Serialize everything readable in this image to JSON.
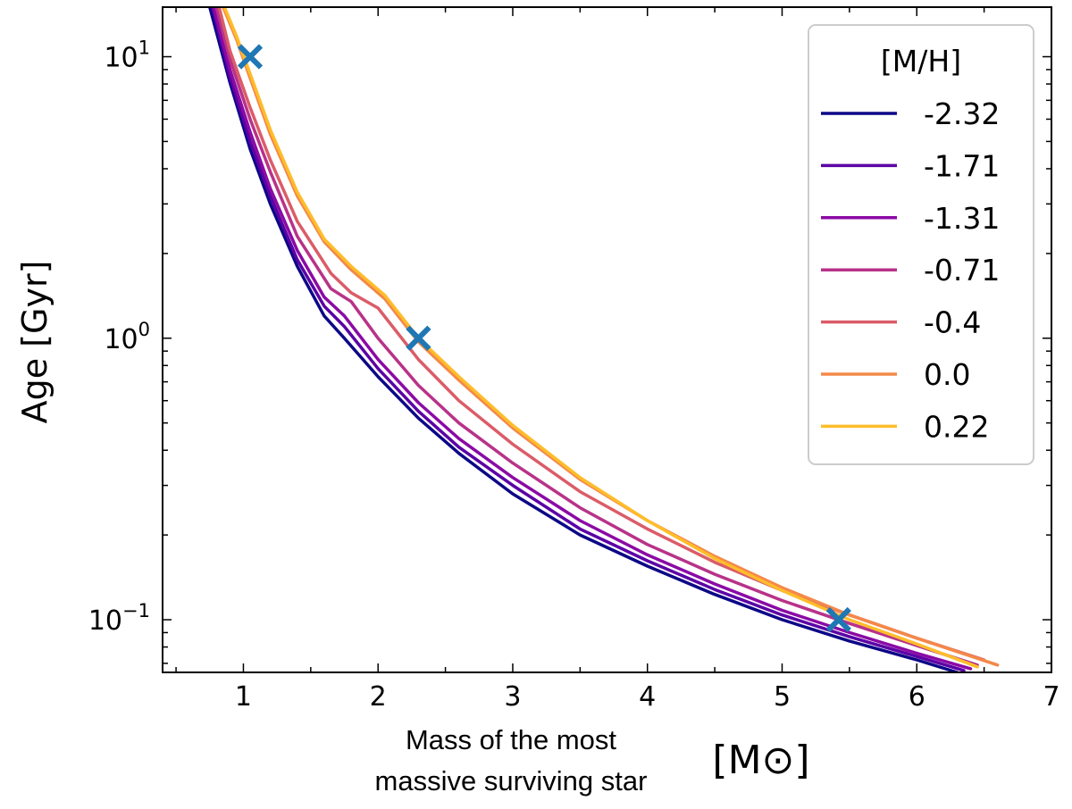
{
  "chart_data": {
    "type": "line",
    "x_scale": "linear",
    "y_scale": "log",
    "xlim": [
      0.4,
      7.0
    ],
    "ylim": [
      0.065,
      15
    ],
    "xlabel_lines": [
      "Mass of the most",
      "massive surviving star"
    ],
    "xlabel_unit": "[M⊙]",
    "ylabel": "Age [Gyr]",
    "x_ticks": [
      1,
      2,
      3,
      4,
      5,
      6,
      7
    ],
    "x_tick_labels": [
      "1",
      "2",
      "3",
      "4",
      "5",
      "6",
      "7"
    ],
    "y_ticks": [
      {
        "value": 0.1,
        "base": "10",
        "exp": "−1"
      },
      {
        "value": 1,
        "base": "10",
        "exp": "0"
      },
      {
        "value": 10,
        "base": "10",
        "exp": "1"
      }
    ],
    "legend": {
      "title": "[M/H]",
      "location": "upper right"
    },
    "series": [
      {
        "name": "-2.32",
        "color": "#0d0887",
        "x": [
          0.75,
          0.9,
          1.05,
          1.2,
          1.4,
          1.6,
          1.75,
          2.0,
          2.3,
          2.6,
          3.0,
          3.5,
          4.0,
          4.5,
          5.0,
          5.5,
          6.0,
          6.3
        ],
        "y": [
          15,
          8.1,
          4.7,
          3.0,
          1.8,
          1.2,
          1.0,
          0.73,
          0.52,
          0.39,
          0.28,
          0.2,
          0.155,
          0.123,
          0.1,
          0.084,
          0.072,
          0.065
        ]
      },
      {
        "name": "-1.71",
        "color": "#5c01a6",
        "x": [
          0.77,
          0.9,
          1.05,
          1.2,
          1.4,
          1.6,
          1.75,
          2.0,
          2.3,
          2.6,
          3.0,
          3.5,
          4.0,
          4.5,
          5.0,
          5.5,
          6.0,
          6.35
        ],
        "y": [
          15,
          8.5,
          5.0,
          3.2,
          1.9,
          1.3,
          1.1,
          0.78,
          0.55,
          0.41,
          0.3,
          0.21,
          0.162,
          0.128,
          0.104,
          0.087,
          0.074,
          0.066
        ]
      },
      {
        "name": "-1.31",
        "color": "#8b0aa5",
        "x": [
          0.78,
          0.9,
          1.05,
          1.2,
          1.4,
          1.6,
          1.75,
          2.0,
          2.3,
          2.6,
          3.0,
          3.5,
          4.0,
          4.5,
          5.0,
          5.5,
          6.0,
          6.4
        ],
        "y": [
          15,
          9.0,
          5.4,
          3.4,
          2.05,
          1.4,
          1.2,
          0.84,
          0.59,
          0.44,
          0.32,
          0.225,
          0.17,
          0.134,
          0.108,
          0.09,
          0.076,
          0.067
        ]
      },
      {
        "name": "-0.71",
        "color": "#b83289",
        "x": [
          0.8,
          0.9,
          1.05,
          1.2,
          1.4,
          1.65,
          1.8,
          2.0,
          2.3,
          2.6,
          3.0,
          3.5,
          4.0,
          4.5,
          5.0,
          5.5,
          6.0,
          6.45
        ],
        "y": [
          15,
          9.8,
          6.0,
          3.9,
          2.3,
          1.5,
          1.35,
          1.0,
          0.68,
          0.5,
          0.36,
          0.25,
          0.185,
          0.145,
          0.117,
          0.097,
          0.081,
          0.069
        ]
      },
      {
        "name": "-0.4",
        "color": "#db5c68",
        "x": [
          0.82,
          0.9,
          1.05,
          1.2,
          1.4,
          1.65,
          1.8,
          2.0,
          2.3,
          2.6,
          3.0,
          3.5,
          4.0,
          4.5,
          5.0,
          5.5,
          6.0,
          6.5
        ],
        "y": [
          15,
          10.5,
          6.6,
          4.3,
          2.6,
          1.7,
          1.45,
          1.28,
          0.84,
          0.6,
          0.42,
          0.285,
          0.21,
          0.16,
          0.127,
          0.104,
          0.086,
          0.072
        ]
      },
      {
        "name": "0.0",
        "color": "#f48849",
        "x": [
          0.85,
          0.95,
          1.05,
          1.2,
          1.4,
          1.6,
          1.8,
          2.05,
          2.3,
          2.6,
          3.0,
          3.5,
          4.0,
          4.5,
          5.0,
          5.5,
          6.0,
          6.6
        ],
        "y": [
          15,
          11.5,
          8.4,
          5.3,
          3.2,
          2.2,
          1.75,
          1.38,
          0.97,
          0.71,
          0.48,
          0.315,
          0.225,
          0.168,
          0.13,
          0.104,
          0.086,
          0.069
        ]
      },
      {
        "name": "0.22",
        "color": "#febd2a",
        "x": [
          0.86,
          0.95,
          1.05,
          1.2,
          1.4,
          1.6,
          1.8,
          2.05,
          2.3,
          2.6,
          3.0,
          3.5,
          4.0,
          4.5,
          5.0,
          5.5,
          6.0,
          6.45
        ],
        "y": [
          15,
          11.8,
          8.7,
          5.5,
          3.3,
          2.25,
          1.8,
          1.42,
          1.0,
          0.73,
          0.49,
          0.32,
          0.225,
          0.165,
          0.127,
          0.1,
          0.082,
          0.068
        ]
      }
    ],
    "markers": {
      "symbol": "x",
      "color": "#1f77b4",
      "points": [
        {
          "x": 1.05,
          "y": 10
        },
        {
          "x": 2.3,
          "y": 1
        },
        {
          "x": 5.42,
          "y": 0.1
        }
      ]
    }
  }
}
